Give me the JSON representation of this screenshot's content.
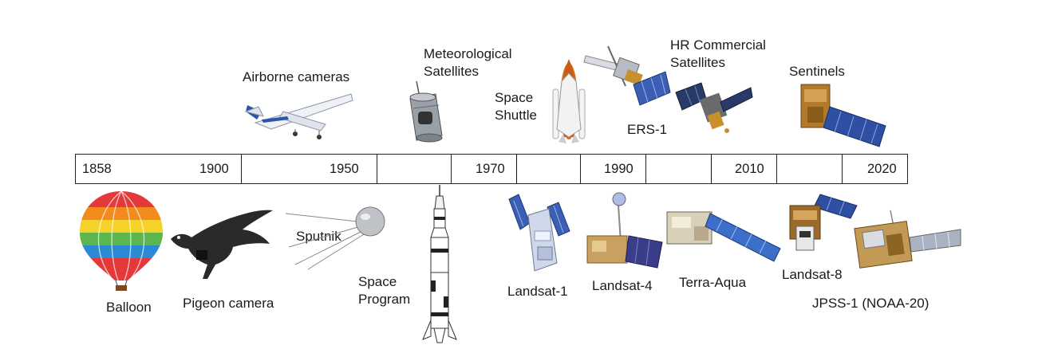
{
  "timeline": {
    "years": [
      "1858",
      "1900",
      "1950",
      "1970",
      "1990",
      "2010",
      "2020"
    ]
  },
  "labels_top": {
    "airborne": "Airborne cameras",
    "meteo_1": "Meteorological",
    "meteo_2": "Satellites",
    "shuttle_1": "Space",
    "shuttle_2": "Shuttle",
    "ers": "ERS-1",
    "hr_1": "HR Commercial",
    "hr_2": "Satellites",
    "sentinels": "Sentinels"
  },
  "labels_bottom": {
    "balloon": "Balloon",
    "pigeon": "Pigeon camera",
    "sputnik": "Sputnik",
    "program_1": "Space",
    "program_2": "Program",
    "landsat1": "Landsat-1",
    "landsat4": "Landsat-4",
    "terra": "Terra-Aqua",
    "landsat8": "Landsat-8",
    "jpss": "JPSS-1 (NOAA-20)"
  },
  "colors": {
    "line": "#222222",
    "panel_blue": "#3b5fb5",
    "gold": "#c8902c",
    "silver": "#b9bcc2"
  }
}
